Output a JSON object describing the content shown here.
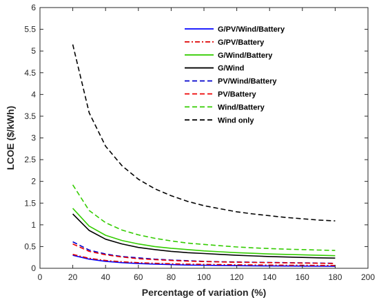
{
  "chart_data": {
    "type": "line",
    "xlabel": "Percentage of variation (%)",
    "ylabel": "LCOE ($/kWh)",
    "xlim": [
      0,
      200
    ],
    "ylim": [
      0,
      6
    ],
    "xticks": [
      0,
      20,
      40,
      60,
      80,
      100,
      120,
      140,
      160,
      180,
      200
    ],
    "yticks": [
      0,
      0.5,
      1,
      1.5,
      2,
      2.5,
      3,
      3.5,
      4,
      4.5,
      5,
      5.5,
      6
    ],
    "grid": false,
    "legend_position": "top-right",
    "x": [
      20,
      30,
      40,
      50,
      60,
      70,
      80,
      90,
      100,
      110,
      120,
      130,
      140,
      150,
      160,
      170,
      180
    ],
    "series": [
      {
        "name": "G/PV/Wind/Battery",
        "color": "#0000ff",
        "dash": "solid",
        "values": [
          0.3,
          0.21,
          0.16,
          0.13,
          0.11,
          0.095,
          0.085,
          0.075,
          0.07,
          0.065,
          0.06,
          0.057,
          0.054,
          0.052,
          0.05,
          0.048,
          0.046
        ]
      },
      {
        "name": "G/PV/Battery",
        "color": "#dd0000",
        "dash": "dashdot",
        "values": [
          0.32,
          0.23,
          0.18,
          0.15,
          0.13,
          0.115,
          0.105,
          0.097,
          0.09,
          0.085,
          0.08,
          0.077,
          0.074,
          0.071,
          0.069,
          0.067,
          0.065
        ]
      },
      {
        "name": "G/Wind/Battery",
        "color": "#33cc00",
        "dash": "solid",
        "values": [
          1.38,
          0.97,
          0.76,
          0.64,
          0.56,
          0.5,
          0.46,
          0.43,
          0.4,
          0.38,
          0.36,
          0.345,
          0.33,
          0.32,
          0.31,
          0.3,
          0.29
        ]
      },
      {
        "name": "G/Wind",
        "color": "#000000",
        "dash": "solid",
        "values": [
          1.25,
          0.87,
          0.67,
          0.56,
          0.48,
          0.43,
          0.39,
          0.36,
          0.34,
          0.32,
          0.3,
          0.285,
          0.27,
          0.26,
          0.25,
          0.24,
          0.235
        ]
      },
      {
        "name": "PV/Wind/Battery",
        "color": "#0000cc",
        "dash": "dashed",
        "values": [
          0.61,
          0.42,
          0.33,
          0.27,
          0.24,
          0.21,
          0.19,
          0.175,
          0.16,
          0.15,
          0.145,
          0.14,
          0.135,
          0.13,
          0.125,
          0.12,
          0.115
        ]
      },
      {
        "name": "PV/Battery",
        "color": "#ee0000",
        "dash": "dashed",
        "values": [
          0.56,
          0.39,
          0.31,
          0.26,
          0.22,
          0.2,
          0.18,
          0.165,
          0.155,
          0.145,
          0.14,
          0.135,
          0.13,
          0.125,
          0.12,
          0.115,
          0.11
        ]
      },
      {
        "name": "Wind/Battery",
        "color": "#33cc00",
        "dash": "dashed",
        "values": [
          1.92,
          1.33,
          1.05,
          0.88,
          0.77,
          0.69,
          0.63,
          0.58,
          0.55,
          0.52,
          0.49,
          0.47,
          0.455,
          0.44,
          0.43,
          0.42,
          0.41
        ]
      },
      {
        "name": "Wind only",
        "color": "#000000",
        "dash": "dashed",
        "values": [
          5.15,
          3.58,
          2.81,
          2.36,
          2.05,
          1.83,
          1.67,
          1.54,
          1.44,
          1.37,
          1.3,
          1.25,
          1.21,
          1.17,
          1.14,
          1.11,
          1.09
        ]
      }
    ]
  }
}
